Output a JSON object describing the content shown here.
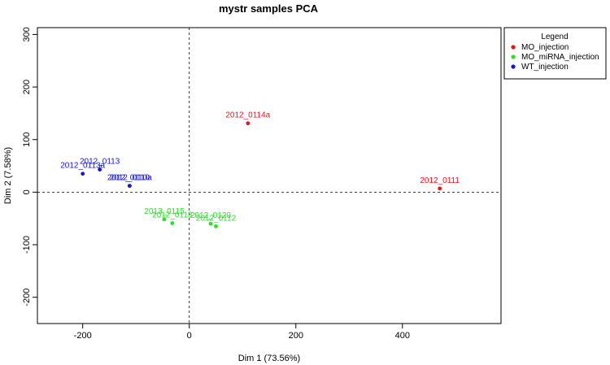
{
  "chart_data": {
    "type": "scatter",
    "title": "mystr  samples PCA",
    "xlabel": "Dim 1 (73.56%)",
    "ylabel": "Dim 2 (7.58%)",
    "xlim": [
      -285,
      585
    ],
    "ylim": [
      -250,
      313
    ],
    "x_ticks": [
      -200,
      0,
      200,
      400
    ],
    "y_ticks": [
      -200,
      -100,
      0,
      100,
      200,
      300
    ],
    "reference_lines": {
      "x": 0,
      "y": 0,
      "style": "dashed"
    },
    "legend": {
      "title": "Legend",
      "placement": "outside-right",
      "entries": [
        {
          "name": "MO_injection",
          "color": "#e8151b"
        },
        {
          "name": "MO_miRNA_injection",
          "color": "#22e81b"
        },
        {
          "name": "WT_injection",
          "color": "#1515d6"
        }
      ]
    },
    "series": [
      {
        "name": "MO_injection",
        "color": "#e8151b",
        "points": [
          {
            "x": 110,
            "y": 131,
            "label": "2012_0114a"
          },
          {
            "x": 470,
            "y": 7,
            "label": "2012_0111"
          }
        ]
      },
      {
        "name": "MO_miRNA_injection",
        "color": "#22e81b",
        "points": [
          {
            "x": -47,
            "y": -52,
            "label": "2013_0115"
          },
          {
            "x": -32,
            "y": -59,
            "label": "2012_0113"
          },
          {
            "x": 40,
            "y": -60,
            "label": "2012_0120"
          },
          {
            "x": 50,
            "y": -65,
            "label": "2012_0112"
          }
        ]
      },
      {
        "name": "WT_injection",
        "color": "#1515d6",
        "points": [
          {
            "x": -200,
            "y": 35,
            "label": "2012_0113a"
          },
          {
            "x": -168,
            "y": 43,
            "label": "2012_0113"
          },
          {
            "x": -112,
            "y": 12,
            "label": "2012_0110"
          },
          {
            "x": -112,
            "y": 12,
            "label": "2012_0110a"
          }
        ]
      }
    ]
  }
}
